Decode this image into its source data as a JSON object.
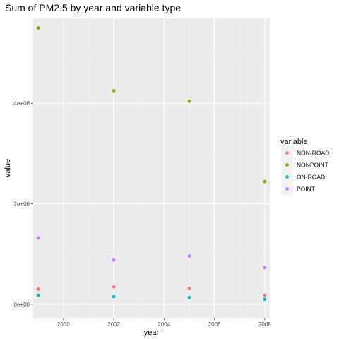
{
  "chart_data": {
    "type": "scatter",
    "title": "Sum of PM2.5 by year and variable type",
    "xlabel": "year",
    "ylabel": "value",
    "xlim": [
      1998.8,
      2008.2
    ],
    "ylim": [
      -270000,
      5690000
    ],
    "x_ticks": [
      2000,
      2002,
      2004,
      2006,
      2008
    ],
    "y_ticks": [
      0,
      2000000,
      4000000
    ],
    "y_tick_labels": [
      "0e+00",
      "2e+06",
      "4e+06"
    ],
    "grid": true,
    "legend": {
      "title": "variable",
      "placement": "right"
    },
    "series": [
      {
        "name": "NON-ROAD",
        "color": "#F8766D",
        "x": [
          1999,
          2002,
          2005,
          2008
        ],
        "y": [
          300000,
          345000,
          315000,
          180000
        ]
      },
      {
        "name": "NONPOINT",
        "color": "#7CAE00",
        "x": [
          1999,
          2002,
          2005,
          2008
        ],
        "y": [
          5500000,
          4250000,
          4040000,
          2440000
        ]
      },
      {
        "name": "ON-ROAD",
        "color": "#00BFC4",
        "x": [
          1999,
          2002,
          2005,
          2008
        ],
        "y": [
          180000,
          150000,
          135000,
          100000
        ]
      },
      {
        "name": "POINT",
        "color": "#C77CFF",
        "x": [
          1999,
          2002,
          2005,
          2008
        ],
        "y": [
          1320000,
          880000,
          960000,
          730000
        ]
      }
    ]
  }
}
